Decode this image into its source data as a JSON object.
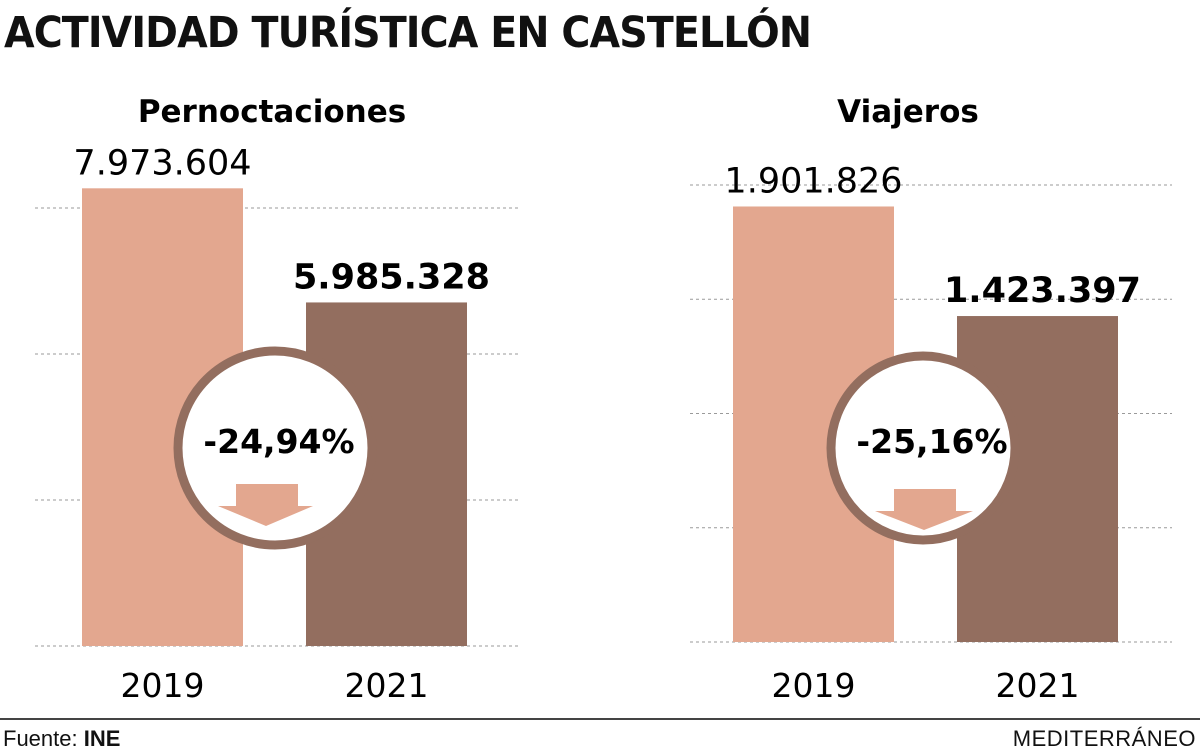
{
  "title": "ACTIVIDAD TURÍSTICA EN CASTELLÓN",
  "source": {
    "label": "Fuente:",
    "value": "INE"
  },
  "brand": "MEDITERRÁNEO",
  "colors": {
    "bar_2019": "#e3a78f",
    "bar_2021": "#936e5f",
    "arrow": "#e3a78f",
    "circle_border": "#936e5f"
  },
  "chart_data": [
    {
      "type": "bar",
      "title": "Pernoctaciones",
      "categories": [
        "2019",
        "2021"
      ],
      "values": [
        7973604,
        5985328
      ],
      "value_labels": [
        "7.973.604",
        "5.985.328"
      ],
      "change_label": "-24,94%",
      "ylim": [
        0,
        8000000
      ],
      "grid": true
    },
    {
      "type": "bar",
      "title": "Viajeros",
      "categories": [
        "2019",
        "2021"
      ],
      "values": [
        1901826,
        1423397
      ],
      "value_labels": [
        "1.901.826",
        "1.423.397"
      ],
      "change_label": "-25,16%",
      "ylim": [
        0,
        2000000
      ],
      "grid": true
    }
  ]
}
